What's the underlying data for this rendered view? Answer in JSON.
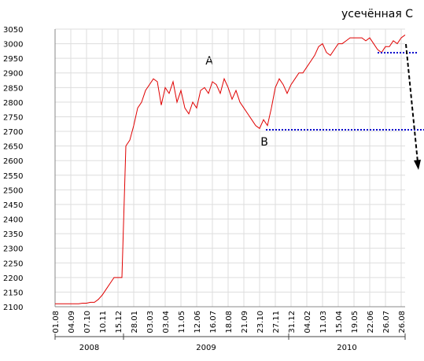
{
  "chart_data": {
    "type": "line",
    "title": "усечённая С",
    "annotations": [
      "A",
      "B"
    ],
    "categories": [
      "01.08",
      null,
      null,
      null,
      "04.09",
      null,
      null,
      null,
      "07.10",
      null,
      null,
      null,
      "10.11",
      null,
      null,
      null,
      "15.12",
      null,
      null,
      null,
      "28.01",
      null,
      null,
      null,
      "03.03",
      null,
      null,
      null,
      "03.04",
      null,
      null,
      null,
      "11.05",
      null,
      null,
      null,
      "12.06",
      null,
      null,
      null,
      "16.07",
      null,
      null,
      null,
      "18.08",
      null,
      null,
      null,
      "21.09",
      null,
      null,
      null,
      "23.10",
      null,
      null,
      null,
      "27.11",
      null,
      null,
      null,
      "31.12",
      null,
      null,
      null,
      "04.02",
      null,
      null,
      null,
      "11.03",
      null,
      null,
      null,
      "15.04",
      null,
      null,
      null,
      "19.05",
      null,
      null,
      null,
      "22.06",
      null,
      null,
      null,
      "26.07",
      null,
      null,
      null,
      "26.08",
      null
    ],
    "x_groups": [
      "2008",
      "2009",
      "2010"
    ],
    "series": [
      {
        "color": "#e00000",
        "values": [
          2110,
          2110,
          2110,
          2110,
          2110,
          2110,
          2110,
          2112,
          2112,
          2115,
          2115,
          2125,
          2140,
          2160,
          2180,
          2200,
          2200,
          2200,
          2650,
          2670,
          2720,
          2780,
          2800,
          2840,
          2860,
          2880,
          2870,
          2790,
          2850,
          2830,
          2870,
          2800,
          2840,
          2780,
          2760,
          2800,
          2780,
          2840,
          2850,
          2830,
          2870,
          2860,
          2830,
          2880,
          2850,
          2810,
          2840,
          2800,
          2780,
          2760,
          2740,
          2720,
          2710,
          2740,
          2720,
          2780,
          2850,
          2880,
          2860,
          2830,
          2860,
          2880,
          2900,
          2900,
          2920,
          2940,
          2960,
          2990,
          3000,
          2970,
          2960,
          2980,
          3000,
          3000,
          3010,
          3020,
          3020,
          3020,
          3020,
          3010,
          3020,
          3000,
          2980,
          2970,
          2990,
          2990,
          3010,
          3000,
          3020,
          3030
        ]
      }
    ],
    "ylim": [
      2100,
      3050
    ],
    "yticks": [
      2100,
      2150,
      2200,
      2250,
      2300,
      2350,
      2400,
      2450,
      2500,
      2550,
      2600,
      2650,
      2700,
      2750,
      2800,
      2850,
      2900,
      2950,
      3000,
      3050
    ],
    "grid": true
  }
}
